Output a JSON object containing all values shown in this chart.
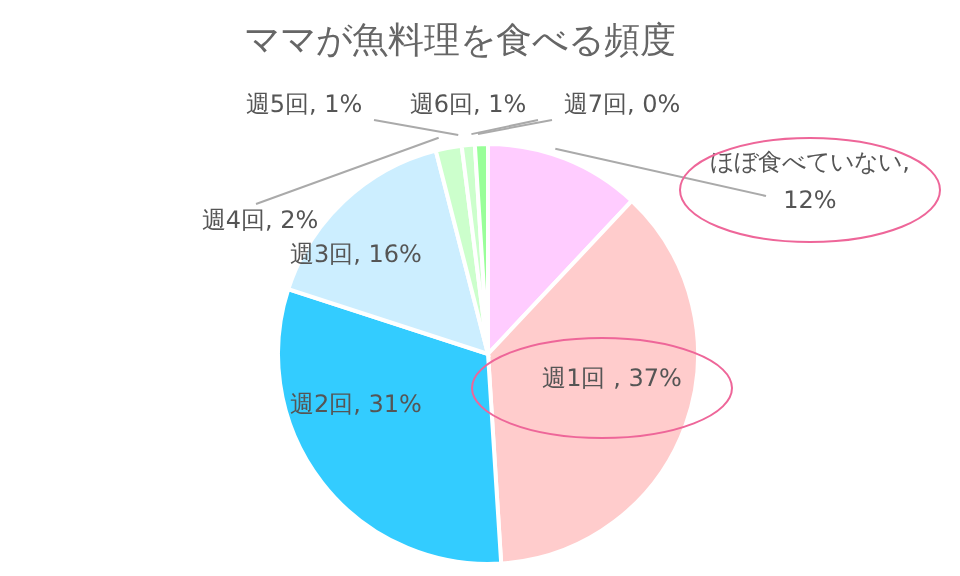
{
  "chart_data": {
    "type": "pie",
    "title": "ママが魚料理を食べる頻度",
    "categories": [
      "ほぼ食べていない",
      "週1回 ",
      "週2回",
      "週3回",
      "週4回",
      "週5回",
      "週6回",
      "週7回"
    ],
    "values": [
      12,
      37,
      31,
      16,
      2,
      1,
      1,
      0
    ],
    "value_labels": [
      ", 12%",
      ", 37%",
      ", 31%",
      ", 16%",
      ", 2%",
      ", 1%",
      ", 1%",
      ", 0%"
    ],
    "colors": [
      "#ffccff",
      "#ffcccc",
      "#33ccff",
      "#cceeff",
      "#ccffcc",
      "#ccffcc",
      "#99ff99",
      "#333366"
    ]
  }
}
